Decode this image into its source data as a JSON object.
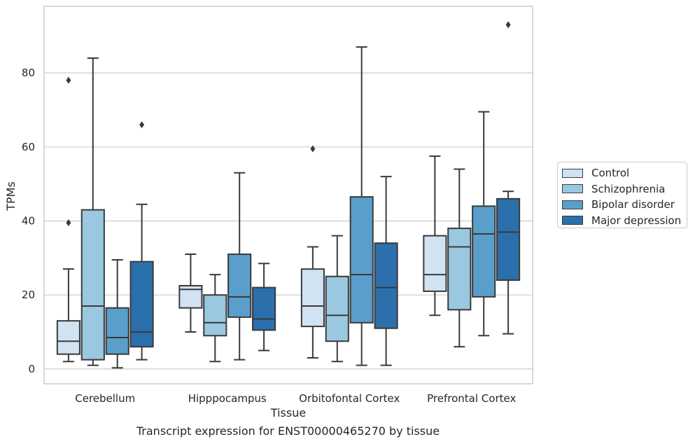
{
  "caption": "Transcript expression for ENST00000465270 by tissue",
  "colors": [
    "#d1e2f2",
    "#9ac8e0",
    "#5a9fcb",
    "#2c6fad"
  ],
  "chart_data": {
    "type": "box",
    "xlabel": "Tissue",
    "ylabel": "TPMs",
    "ylim": [
      -4,
      98
    ],
    "yticks": [
      0,
      20,
      40,
      60,
      80
    ],
    "grid": true,
    "legend_position": "right",
    "categories": [
      "Cerebellum",
      "Hipppocampus",
      "Orbitofontal Cortex",
      "Prefrontal Cortex"
    ],
    "series": [
      {
        "name": "Control",
        "boxes": [
          {
            "whislo": 2,
            "q1": 4,
            "med": 7.5,
            "q3": 13,
            "whishi": 27,
            "fliers": [
              39.5,
              78
            ]
          },
          {
            "whislo": 10,
            "q1": 16.5,
            "med": 21.5,
            "q3": 22.5,
            "whishi": 31,
            "fliers": []
          },
          {
            "whislo": 3,
            "q1": 11.5,
            "med": 17,
            "q3": 27,
            "whishi": 33,
            "fliers": [
              59.5
            ]
          },
          {
            "whislo": 14.5,
            "q1": 21,
            "med": 25.5,
            "q3": 36,
            "whishi": 57.5,
            "fliers": []
          }
        ]
      },
      {
        "name": "Schizophrenia",
        "boxes": [
          {
            "whislo": 1,
            "q1": 2.5,
            "med": 17,
            "q3": 43,
            "whishi": 84,
            "fliers": []
          },
          {
            "whislo": 2,
            "q1": 9,
            "med": 12.5,
            "q3": 20,
            "whishi": 25.5,
            "fliers": []
          },
          {
            "whislo": 2,
            "q1": 7.5,
            "med": 14.5,
            "q3": 25,
            "whishi": 36,
            "fliers": []
          },
          {
            "whislo": 6,
            "q1": 16,
            "med": 33,
            "q3": 38,
            "whishi": 54,
            "fliers": []
          }
        ]
      },
      {
        "name": "Bipolar disorder",
        "boxes": [
          {
            "whislo": 0.3,
            "q1": 4,
            "med": 8.5,
            "q3": 16.5,
            "whishi": 29.5,
            "fliers": []
          },
          {
            "whislo": 2.5,
            "q1": 14,
            "med": 19.5,
            "q3": 31,
            "whishi": 53,
            "fliers": []
          },
          {
            "whislo": 1,
            "q1": 12.5,
            "med": 25.5,
            "q3": 46.5,
            "whishi": 87,
            "fliers": []
          },
          {
            "whislo": 9,
            "q1": 19.5,
            "med": 36.5,
            "q3": 44,
            "whishi": 69.5,
            "fliers": []
          }
        ]
      },
      {
        "name": "Major depression",
        "boxes": [
          {
            "whislo": 2.5,
            "q1": 6,
            "med": 10,
            "q3": 29,
            "whishi": 44.5,
            "fliers": [
              66
            ]
          },
          {
            "whislo": 5,
            "q1": 10.5,
            "med": 13.5,
            "q3": 22,
            "whishi": 28.5,
            "fliers": []
          },
          {
            "whislo": 1,
            "q1": 11,
            "med": 22,
            "q3": 34,
            "whishi": 52,
            "fliers": []
          },
          {
            "whislo": 9.5,
            "q1": 24,
            "med": 37,
            "q3": 46,
            "whishi": 48,
            "fliers": [
              93
            ]
          }
        ]
      }
    ]
  }
}
